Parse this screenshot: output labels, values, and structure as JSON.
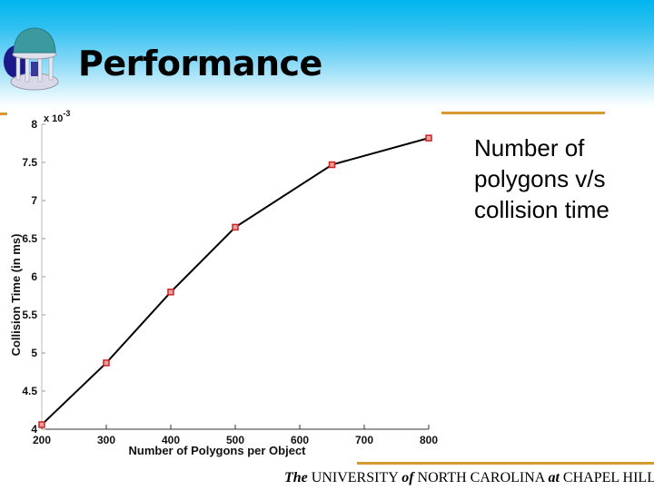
{
  "slide": {
    "title": "Performance",
    "logo_icon": "old-well-icon",
    "side_text": "Number of polygons v/s collision time",
    "footer": {
      "the": "The",
      "university": " UNIVERSITY ",
      "of": "of",
      "nc": " NORTH CAROLINA ",
      "at": "at",
      "ch": " CHAPEL HILL"
    },
    "colors": {
      "header_top": "#00b4ee",
      "accent_rule": "#d89a30",
      "line": "#000000",
      "marker": "#cc2222"
    }
  },
  "chart_data": {
    "type": "line",
    "title": "",
    "xlabel": "Number of Polygons per Object",
    "ylabel": "Collision Time (in ms)",
    "y_multiplier": "x 10^-3",
    "x": [
      200,
      300,
      400,
      500,
      650,
      800
    ],
    "values": [
      4.06,
      4.87,
      5.8,
      6.65,
      7.47,
      7.82
    ],
    "xlim": [
      200,
      800
    ],
    "ylim": [
      4,
      8
    ],
    "xticks": [
      200,
      300,
      400,
      500,
      600,
      700,
      800
    ],
    "yticks": [
      4,
      4.5,
      5,
      5.5,
      6,
      6.5,
      7,
      7.5,
      8
    ],
    "grid": false,
    "legend": null,
    "marker": "square"
  }
}
